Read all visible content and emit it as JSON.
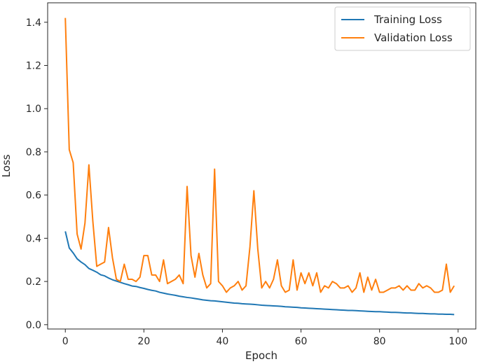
{
  "chart_data": {
    "type": "line",
    "title": "",
    "xlabel": "Epoch",
    "ylabel": "Loss",
    "xlim": [
      -4.5,
      104.5
    ],
    "ylim": [
      -0.02,
      1.49
    ],
    "xticks": [
      0,
      20,
      40,
      60,
      80,
      100
    ],
    "yticks": [
      0.0,
      0.2,
      0.4,
      0.6,
      0.8,
      1.0,
      1.2,
      1.4
    ],
    "grid": false,
    "legend": "top-right",
    "series": [
      {
        "name": "Training Loss",
        "color": "#1f77b4",
        "values": [
          0.432,
          0.355,
          0.332,
          0.305,
          0.29,
          0.278,
          0.26,
          0.252,
          0.243,
          0.231,
          0.226,
          0.216,
          0.208,
          0.202,
          0.196,
          0.19,
          0.185,
          0.179,
          0.177,
          0.172,
          0.168,
          0.163,
          0.159,
          0.156,
          0.15,
          0.146,
          0.142,
          0.139,
          0.136,
          0.132,
          0.129,
          0.126,
          0.124,
          0.121,
          0.118,
          0.115,
          0.113,
          0.111,
          0.11,
          0.108,
          0.106,
          0.104,
          0.102,
          0.1,
          0.099,
          0.097,
          0.096,
          0.095,
          0.094,
          0.092,
          0.09,
          0.089,
          0.088,
          0.087,
          0.086,
          0.085,
          0.083,
          0.082,
          0.081,
          0.08,
          0.078,
          0.077,
          0.076,
          0.075,
          0.074,
          0.073,
          0.072,
          0.071,
          0.07,
          0.069,
          0.068,
          0.067,
          0.066,
          0.066,
          0.065,
          0.064,
          0.063,
          0.062,
          0.061,
          0.06,
          0.06,
          0.059,
          0.058,
          0.057,
          0.057,
          0.056,
          0.055,
          0.054,
          0.054,
          0.053,
          0.052,
          0.052,
          0.051,
          0.05,
          0.05,
          0.049,
          0.049,
          0.048,
          0.048,
          0.047
        ]
      },
      {
        "name": "Validation Loss",
        "color": "#ff7f0e",
        "values": [
          1.42,
          0.81,
          0.75,
          0.42,
          0.35,
          0.47,
          0.74,
          0.48,
          0.27,
          0.28,
          0.29,
          0.45,
          0.31,
          0.21,
          0.2,
          0.28,
          0.21,
          0.21,
          0.2,
          0.22,
          0.32,
          0.32,
          0.23,
          0.23,
          0.2,
          0.3,
          0.19,
          0.2,
          0.21,
          0.23,
          0.19,
          0.64,
          0.32,
          0.22,
          0.33,
          0.23,
          0.17,
          0.19,
          0.72,
          0.2,
          0.18,
          0.15,
          0.17,
          0.18,
          0.2,
          0.16,
          0.18,
          0.36,
          0.62,
          0.35,
          0.17,
          0.2,
          0.17,
          0.21,
          0.3,
          0.18,
          0.15,
          0.16,
          0.3,
          0.16,
          0.24,
          0.19,
          0.24,
          0.18,
          0.24,
          0.15,
          0.18,
          0.17,
          0.2,
          0.19,
          0.17,
          0.17,
          0.18,
          0.15,
          0.17,
          0.24,
          0.15,
          0.22,
          0.16,
          0.21,
          0.15,
          0.15,
          0.16,
          0.17,
          0.17,
          0.18,
          0.16,
          0.18,
          0.16,
          0.16,
          0.19,
          0.17,
          0.18,
          0.17,
          0.15,
          0.15,
          0.16,
          0.28,
          0.15,
          0.18
        ]
      }
    ]
  }
}
